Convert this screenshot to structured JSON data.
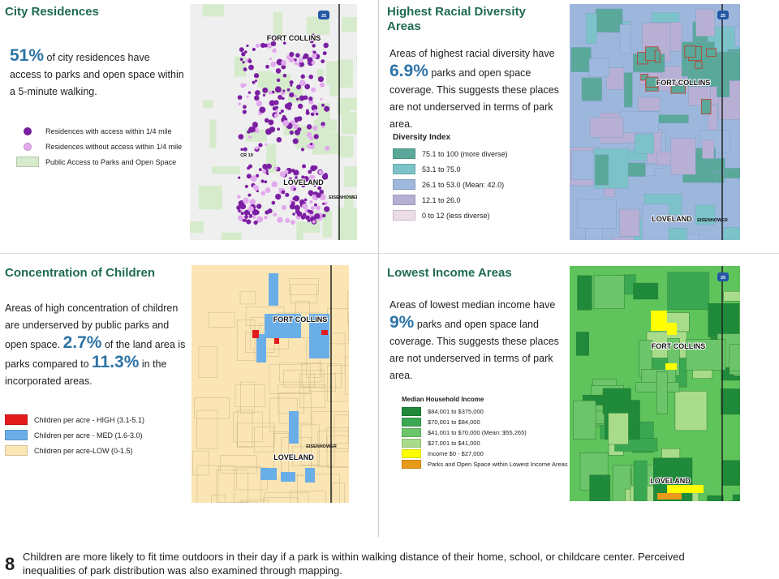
{
  "panels": [
    {
      "title": "City Residences",
      "paragraph": [
        {
          "text": "51%",
          "emphasis": true
        },
        {
          "text": " of city residences have access to parks and open space within a 5-minute walking."
        }
      ],
      "legend": [
        {
          "label": "Residences with access within 1/4 mile",
          "color": "#7b1fa2",
          "shape": "dot"
        },
        {
          "label": "Residences without access within 1/4 mile",
          "color": "#e2a9ee",
          "shape": "dot"
        },
        {
          "label": "Public Access to Parks and Open Space",
          "color": "#d6ebcc",
          "shape": "box"
        }
      ],
      "map_labels": [
        "FORT COLLINS",
        "LOVELAND",
        "EISENHOWER",
        "CR 19",
        "25"
      ]
    },
    {
      "title": "Highest Racial Diversity Areas",
      "paragraph": [
        {
          "text": "Areas of highest racial diversity have "
        },
        {
          "text": "6.9%",
          "emphasis": true
        },
        {
          "text": " parks and open space coverage. This suggests these places are not underserved in terms of park area."
        }
      ],
      "legend_title": "Diversity Index",
      "legend": [
        {
          "label": "75.1 to 100 (more diverse)",
          "color": "#5aa89a",
          "shape": "box"
        },
        {
          "label": "53.1 to 75.0",
          "color": "#7cc3c9",
          "shape": "box"
        },
        {
          "label": "26.1 to 53.0 (Mean: 42.0)",
          "color": "#9fb8dd",
          "shape": "box"
        },
        {
          "label": "12.1 to 26.0",
          "color": "#b8b0d4",
          "shape": "box"
        },
        {
          "label": "0 to 12 (less diverse)",
          "color": "#ecdde6",
          "shape": "box"
        }
      ],
      "map_labels": [
        "FORT COLLINS",
        "LOVELAND",
        "EISENHOWER",
        "25"
      ]
    },
    {
      "title": "Concentration of Children",
      "paragraph": [
        {
          "text": "Areas of high concentration of children are underserved by public parks and open space. "
        },
        {
          "text": "2.7%",
          "emphasis": true
        },
        {
          "text": " of the land area is parks compared to "
        },
        {
          "text": "11.3%",
          "emphasis": true
        },
        {
          "text": " in the incorporated areas."
        }
      ],
      "legend": [
        {
          "label": "Children per acre - HIGH (3.1-5.1)",
          "color": "#e31a1c",
          "shape": "box"
        },
        {
          "label": "Children per acre - MED  (1.6-3.0)",
          "color": "#6aaee8",
          "shape": "box"
        },
        {
          "label": "Children per acre-LOW   (0-1.5)",
          "color": "#fbe5b4",
          "shape": "box"
        }
      ],
      "map_labels": [
        "FORT COLLINS",
        "LOVELAND",
        "EISENHOWER"
      ]
    },
    {
      "title": "Lowest Income Areas",
      "paragraph": [
        {
          "text": "Areas of lowest median income have "
        },
        {
          "text": "9%",
          "emphasis": true
        },
        {
          "text": " parks and open space land coverage. This suggests these places are not underserved in terms of park area."
        }
      ],
      "legend_title": "Median Household Income",
      "legend": [
        {
          "label": "$84,001 to $375,000",
          "color": "#1e8a3a",
          "shape": "box"
        },
        {
          "label": "$70,001 to  $84,000",
          "color": "#3aa852",
          "shape": "box"
        },
        {
          "label": "$41,001 to  $70,000 (Mean: $55,265)",
          "color": "#6cc56a",
          "shape": "box"
        },
        {
          "label": "$27,001 to  $41,000",
          "color": "#a9dc8a",
          "shape": "box"
        },
        {
          "label": "Income $0 - $27,000",
          "color": "#ffff00",
          "shape": "box"
        },
        {
          "label": "Parks and Open Space within Lowest Income Areas",
          "color": "#e89a1a",
          "shape": "box"
        }
      ],
      "map_labels": [
        "FORT COLLINS",
        "LOVELAND",
        "25"
      ]
    }
  ],
  "footer": {
    "page_number": "8",
    "text": "Children are more likely to fit time outdoors in their day if a park is within walking distance of their home, school, or childcare center. Perceived inequalities of park distribution was also examined through mapping."
  }
}
